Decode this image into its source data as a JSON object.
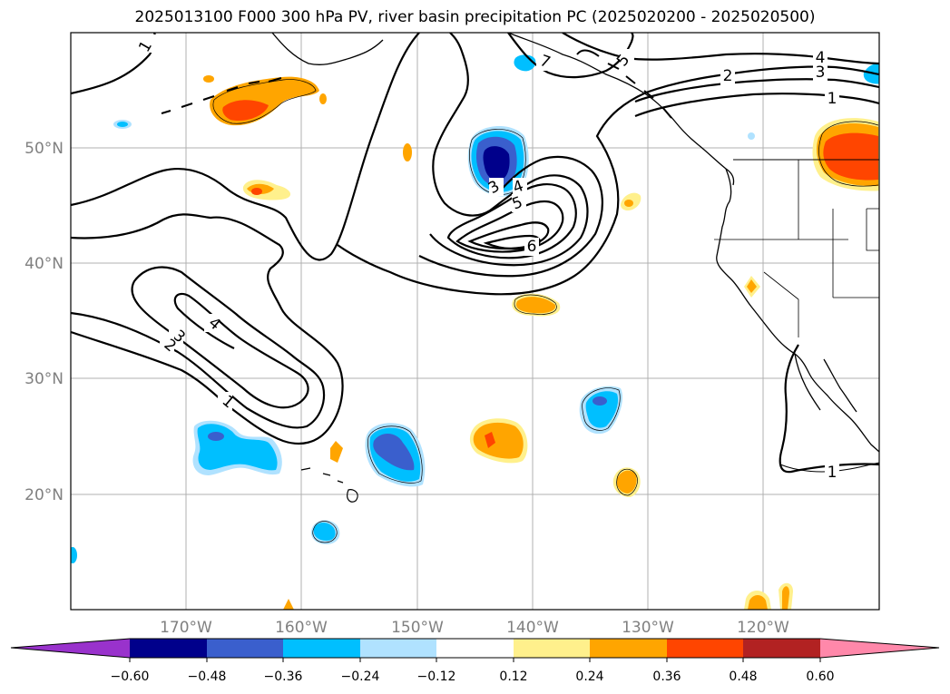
{
  "title": "2025013100 F000 300 hPa PV, river basin precipitation PC (2025020200 - 2025020500)",
  "map": {
    "lon_range": [
      "180°W",
      "110°W"
    ],
    "lat_range": [
      "10°N",
      "60°N"
    ],
    "lat_labels": [
      "50°N",
      "40°N",
      "30°N",
      "20°N"
    ],
    "lon_labels": [
      "170°W",
      "160°W",
      "150°W",
      "140°W",
      "130°W",
      "120°W"
    ],
    "label_color": "#808080",
    "grid": true
  },
  "contour_labels": [
    "1",
    "5",
    "4",
    "3",
    "2",
    "1",
    "4",
    "5",
    "6",
    "3",
    "4",
    "2",
    "3",
    "1",
    "1",
    "7"
  ],
  "colorbar": {
    "ticks": [
      "−0.60",
      "−0.48",
      "−0.36",
      "−0.24",
      "−0.12",
      "0.12",
      "0.24",
      "0.36",
      "0.48",
      "0.60"
    ],
    "extend": "both",
    "colors": [
      "#9932cc",
      "#00008b",
      "#3a5fcd",
      "#00bfff",
      "#b0e2ff",
      "#ffffff",
      "#fff08c",
      "#ffa500",
      "#ff4500",
      "#b22222",
      "#ff88aa"
    ]
  }
}
